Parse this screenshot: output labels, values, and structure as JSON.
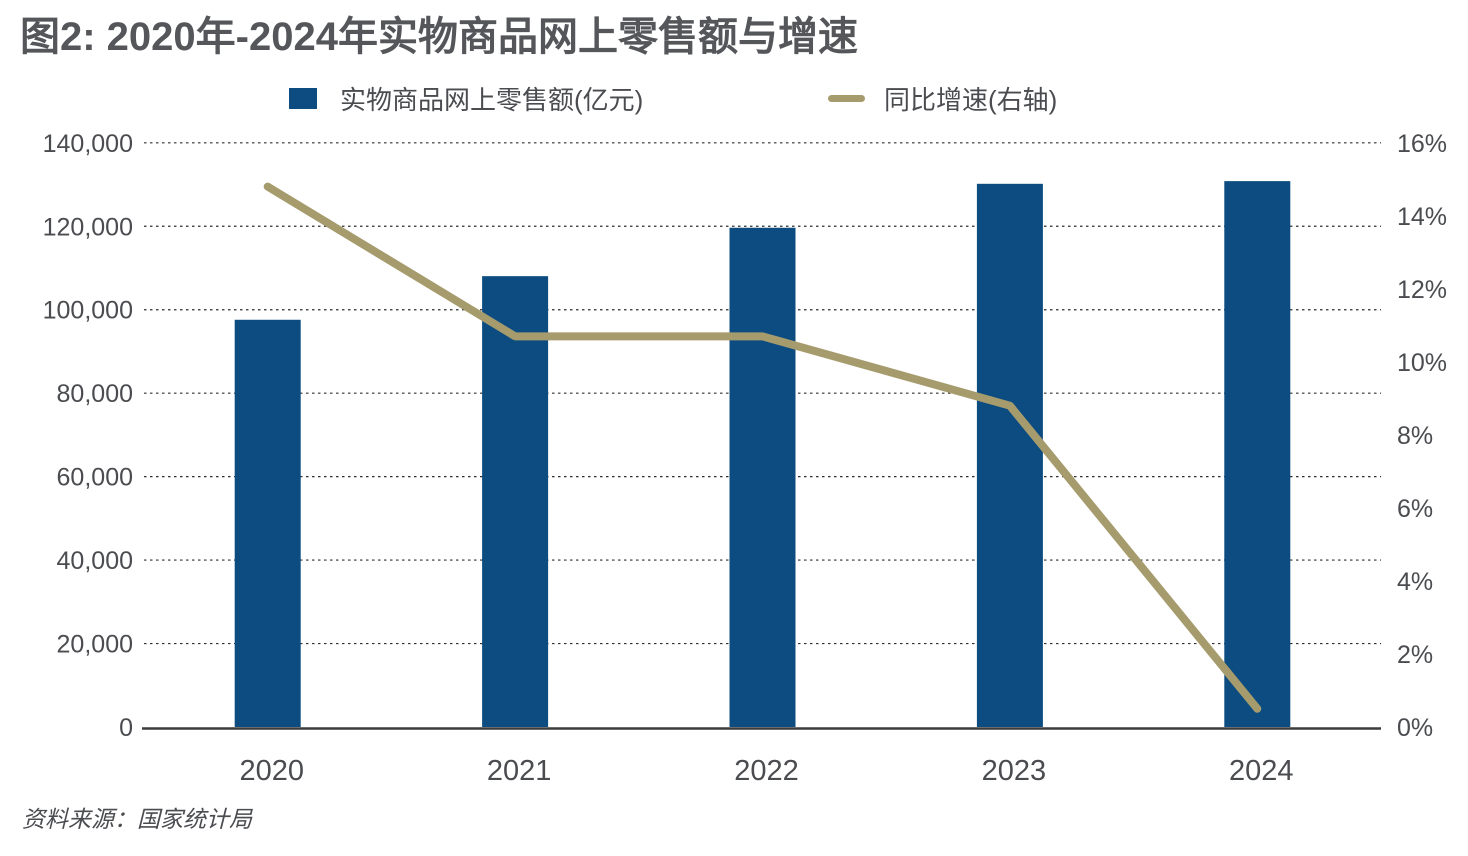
{
  "title": "图2: 2020年-2024年实物商品网上零售额与增速",
  "source": "资料来源：国家统计局",
  "legend": {
    "bar_label": "实物商品网上零售额(亿元)",
    "line_label": "同比增速(右轴)"
  },
  "colors": {
    "bar": "#0c4c80",
    "line": "#a69b6d",
    "axis": "#3c3c3c",
    "grid": "#2f2f2f",
    "text": "#4a4c50",
    "title_text": "#54565a"
  },
  "chart_data": {
    "type": "combo-bar-line",
    "title": "图2: 2020年-2024年实物商品网上零售额与增速",
    "categories": [
      "2020",
      "2021",
      "2022",
      "2023",
      "2024"
    ],
    "series": [
      {
        "name": "实物商品网上零售额(亿元)",
        "type": "bar",
        "axis": "left",
        "values": [
          97590,
          108042,
          119642,
          130174,
          130816
        ]
      },
      {
        "name": "同比增速(右轴)",
        "type": "line",
        "axis": "right",
        "values": [
          14.8,
          10.7,
          10.7,
          8.8,
          0.5
        ]
      }
    ],
    "left_axis": {
      "min": 0,
      "max": 140000,
      "ticks": [
        {
          "value": 0,
          "label": "0"
        },
        {
          "value": 20000,
          "label": "20,000"
        },
        {
          "value": 40000,
          "label": "40,000"
        },
        {
          "value": 60000,
          "label": "60,000"
        },
        {
          "value": 80000,
          "label": "80,000"
        },
        {
          "value": 100000,
          "label": "100,000"
        },
        {
          "value": 120000,
          "label": "120,000"
        },
        {
          "value": 140000,
          "label": "140,000"
        }
      ]
    },
    "right_axis": {
      "min": 0,
      "max": 16,
      "ticks": [
        {
          "value": 0,
          "label": "0%"
        },
        {
          "value": 2,
          "label": "2%"
        },
        {
          "value": 4,
          "label": "4%"
        },
        {
          "value": 6,
          "label": "6%"
        },
        {
          "value": 8,
          "label": "8%"
        },
        {
          "value": 10,
          "label": "10%"
        },
        {
          "value": 12,
          "label": "12%"
        },
        {
          "value": 14,
          "label": "14%"
        },
        {
          "value": 16,
          "label": "16%"
        }
      ]
    },
    "grid": "horizontal-dotted",
    "legend_position": "top",
    "source": "资料来源：国家统计局"
  }
}
